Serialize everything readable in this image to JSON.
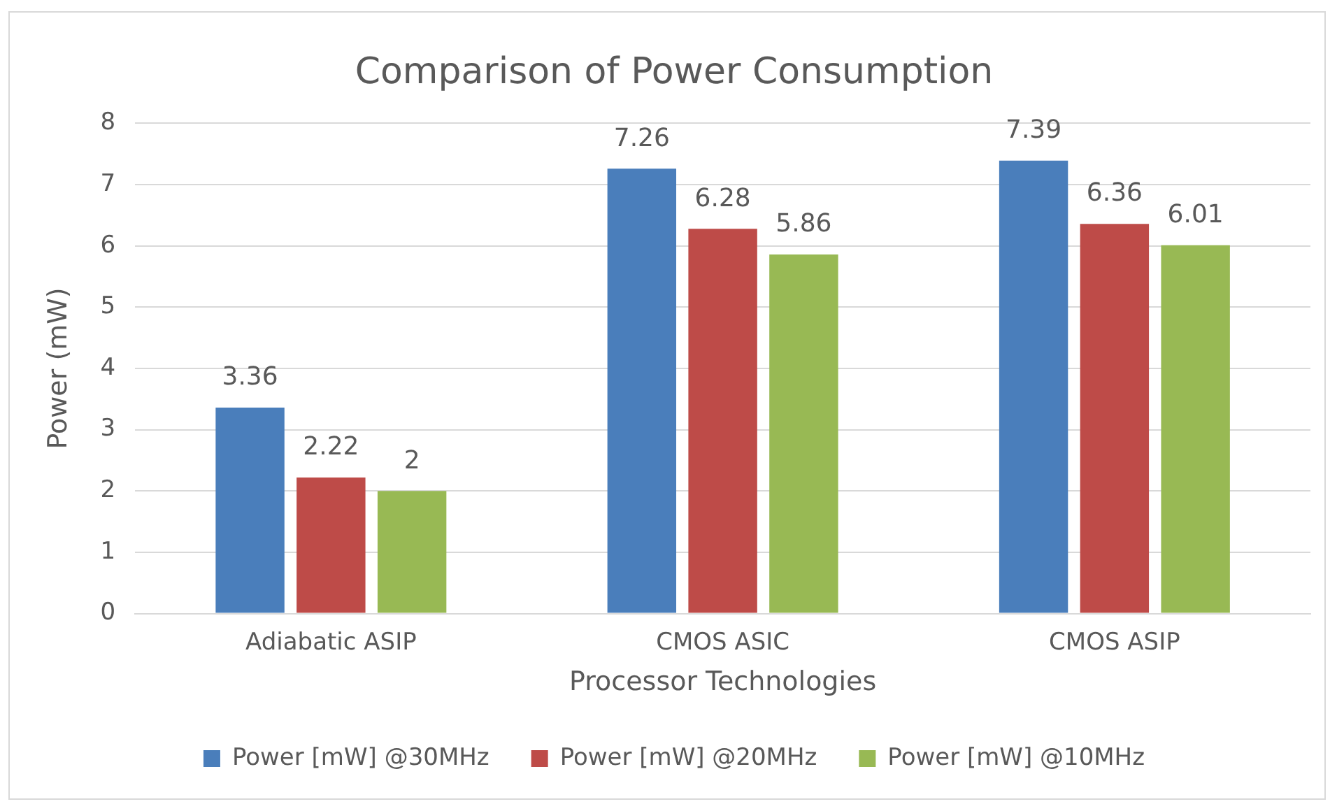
{
  "chart_data": {
    "type": "bar",
    "title": "Comparison of Power Consumption",
    "xlabel": "Processor Technologies",
    "ylabel": "Power (mW)",
    "categories": [
      "Adiabatic ASIP",
      "CMOS ASIC",
      "CMOS ASIP"
    ],
    "series": [
      {
        "name": "Power [mW] @30MHz",
        "color": "#4a7ebb",
        "values": [
          3.36,
          7.26,
          7.39
        ]
      },
      {
        "name": "Power [mW] @20MHz",
        "color": "#be4b48",
        "values": [
          2.22,
          6.28,
          6.36
        ]
      },
      {
        "name": "Power [mW] @10MHz",
        "color": "#98b954",
        "values": [
          2,
          5.86,
          6.01
        ]
      }
    ],
    "ylim": [
      0,
      8
    ],
    "yticks": [
      0,
      1,
      2,
      3,
      4,
      5,
      6,
      7,
      8
    ],
    "grid": "y",
    "legend": "bottom",
    "data_labels": true
  }
}
